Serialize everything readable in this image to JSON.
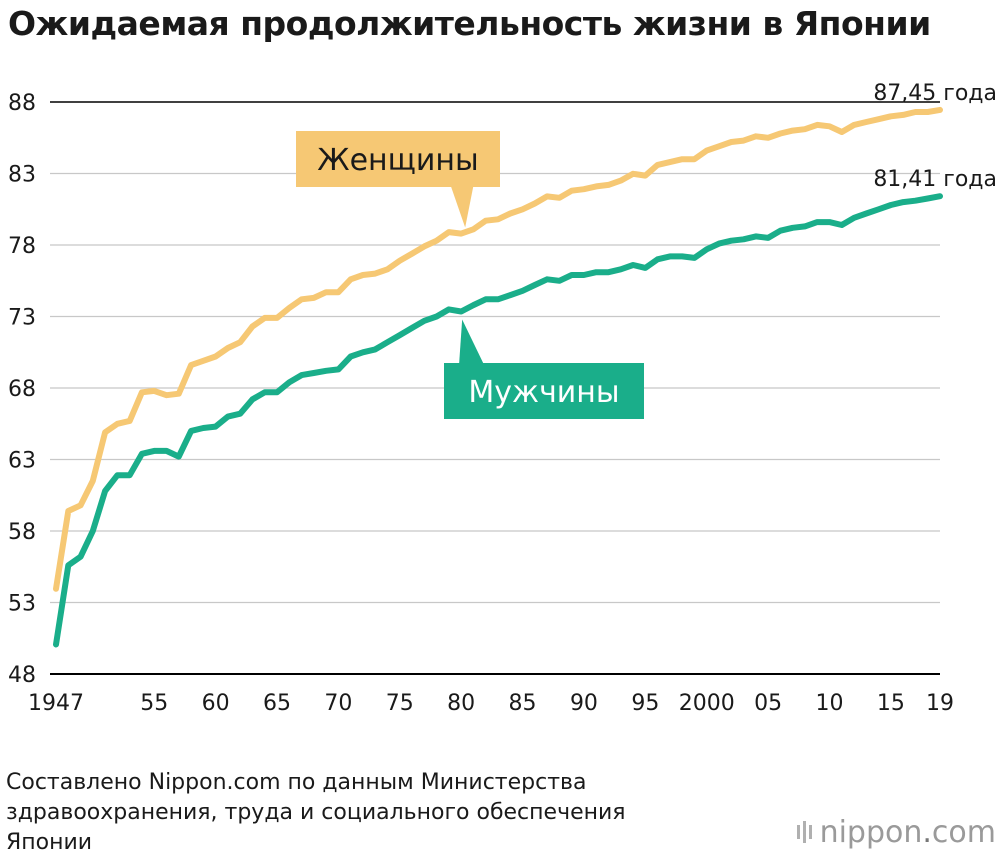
{
  "title": "Ожидаемая продолжительность жизни в Японии",
  "source": "Составлено Nippon.com по данным Министерства здравоохранения, труда и социального обеспечения Японии",
  "logo": {
    "name": "nippon",
    "suffix": "com",
    "icon": "nippon-logo-mark"
  },
  "colors": {
    "women": "#f6c874",
    "men": "#1aae8a",
    "grid": "#c8c8c8",
    "axis": "#000000"
  },
  "chart_data": {
    "type": "line",
    "title": "Ожидаемая продолжительность жизни в Японии",
    "xlabel": "",
    "ylabel": "",
    "xlim": [
      1947,
      2019
    ],
    "ylim": [
      48,
      88
    ],
    "yticks": [
      48,
      53,
      58,
      63,
      68,
      73,
      78,
      83,
      88
    ],
    "xticks": [
      {
        "value": 1947,
        "label": "1947"
      },
      {
        "value": 1955,
        "label": "55"
      },
      {
        "value": 1960,
        "label": "60"
      },
      {
        "value": 1965,
        "label": "65"
      },
      {
        "value": 1970,
        "label": "70"
      },
      {
        "value": 1975,
        "label": "75"
      },
      {
        "value": 1980,
        "label": "80"
      },
      {
        "value": 1985,
        "label": "85"
      },
      {
        "value": 1990,
        "label": "90"
      },
      {
        "value": 1995,
        "label": "95"
      },
      {
        "value": 2000,
        "label": "2000"
      },
      {
        "value": 2005,
        "label": "05"
      },
      {
        "value": 2010,
        "label": "10"
      },
      {
        "value": 2015,
        "label": "15"
      },
      {
        "value": 2019,
        "label": "19"
      }
    ],
    "grid": true,
    "x": [
      1947,
      1948,
      1949,
      1950,
      1951,
      1952,
      1953,
      1954,
      1955,
      1956,
      1957,
      1958,
      1959,
      1960,
      1961,
      1962,
      1963,
      1964,
      1965,
      1966,
      1967,
      1968,
      1969,
      1970,
      1971,
      1972,
      1973,
      1974,
      1975,
      1976,
      1977,
      1978,
      1979,
      1980,
      1981,
      1982,
      1983,
      1984,
      1985,
      1986,
      1987,
      1988,
      1989,
      1990,
      1991,
      1992,
      1993,
      1994,
      1995,
      1996,
      1997,
      1998,
      1999,
      2000,
      2001,
      2002,
      2003,
      2004,
      2005,
      2006,
      2007,
      2008,
      2009,
      2010,
      2011,
      2012,
      2013,
      2014,
      2015,
      2016,
      2017,
      2018,
      2019
    ],
    "series": [
      {
        "name": "Женщины",
        "end_label": "87,45 года",
        "values": [
          53.96,
          59.4,
          59.8,
          61.5,
          64.9,
          65.5,
          65.7,
          67.7,
          67.8,
          67.5,
          67.6,
          69.6,
          69.9,
          70.2,
          70.8,
          71.2,
          72.3,
          72.9,
          72.9,
          73.6,
          74.2,
          74.3,
          74.7,
          74.7,
          75.6,
          75.9,
          76.0,
          76.3,
          76.9,
          77.4,
          77.9,
          78.3,
          78.9,
          78.8,
          79.1,
          79.7,
          79.8,
          80.2,
          80.5,
          80.9,
          81.4,
          81.3,
          81.8,
          81.9,
          82.1,
          82.2,
          82.5,
          82.98,
          82.85,
          83.6,
          83.8,
          84.0,
          84.0,
          84.6,
          84.9,
          85.2,
          85.3,
          85.6,
          85.5,
          85.8,
          86.0,
          86.1,
          86.4,
          86.3,
          85.9,
          86.4,
          86.6,
          86.8,
          87.0,
          87.1,
          87.3,
          87.3,
          87.45
        ]
      },
      {
        "name": "Мужчины",
        "end_label": "81,41 года",
        "values": [
          50.06,
          55.6,
          56.2,
          58.0,
          60.8,
          61.9,
          61.9,
          63.4,
          63.6,
          63.6,
          63.2,
          65.0,
          65.2,
          65.3,
          66.0,
          66.2,
          67.2,
          67.7,
          67.7,
          68.4,
          68.9,
          69.05,
          69.2,
          69.3,
          70.2,
          70.5,
          70.7,
          71.2,
          71.7,
          72.2,
          72.7,
          73.0,
          73.5,
          73.35,
          73.8,
          74.2,
          74.2,
          74.5,
          74.8,
          75.2,
          75.6,
          75.5,
          75.9,
          75.9,
          76.1,
          76.1,
          76.3,
          76.6,
          76.4,
          77.0,
          77.2,
          77.2,
          77.1,
          77.7,
          78.1,
          78.3,
          78.4,
          78.6,
          78.5,
          79.0,
          79.2,
          79.3,
          79.6,
          79.6,
          79.4,
          79.9,
          80.2,
          80.5,
          80.8,
          81.0,
          81.1,
          81.25,
          81.41
        ]
      }
    ],
    "callouts": [
      {
        "series": "Женщины",
        "label": "Женщины",
        "year": 1980
      },
      {
        "series": "Мужчины",
        "label": "Мужчины",
        "year": 1980
      }
    ]
  }
}
